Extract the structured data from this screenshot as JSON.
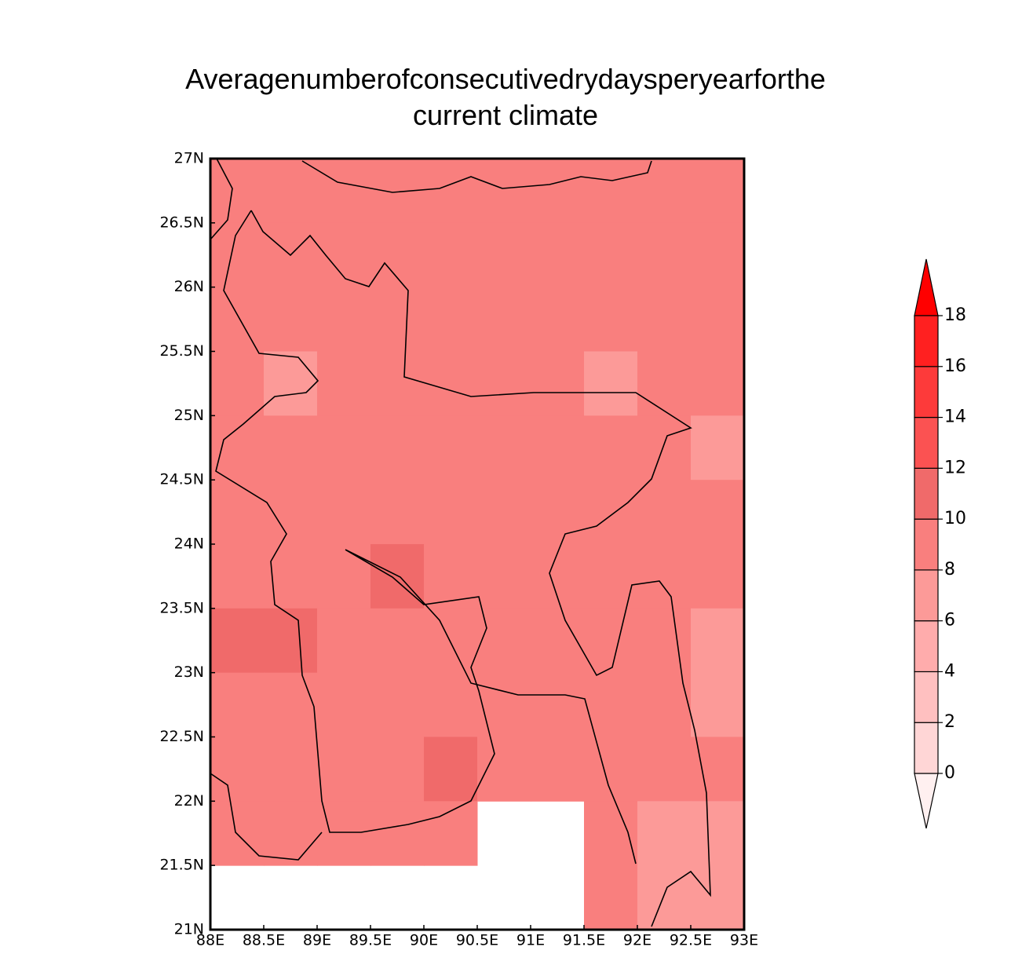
{
  "chart_data": {
    "type": "gridmap",
    "title": "Averagenumberofconsecutivedrydaysperyearforthe current climate",
    "xlim": [
      88,
      93
    ],
    "ylim": [
      21,
      27
    ],
    "xticks": [
      {
        "value": 88,
        "label": "88E"
      },
      {
        "value": 88.5,
        "label": "88.5E"
      },
      {
        "value": 89,
        "label": "89E"
      },
      {
        "value": 89.5,
        "label": "89.5E"
      },
      {
        "value": 90,
        "label": "90E"
      },
      {
        "value": 90.5,
        "label": "90.5E"
      },
      {
        "value": 91,
        "label": "91E"
      },
      {
        "value": 91.5,
        "label": "91.5E"
      },
      {
        "value": 92,
        "label": "92E"
      },
      {
        "value": 92.5,
        "label": "92.5E"
      },
      {
        "value": 93,
        "label": "93E"
      }
    ],
    "yticks": [
      {
        "value": 21,
        "label": "21N"
      },
      {
        "value": 21.5,
        "label": "21.5N"
      },
      {
        "value": 22,
        "label": "22N"
      },
      {
        "value": 22.5,
        "label": "22.5N"
      },
      {
        "value": 23,
        "label": "23N"
      },
      {
        "value": 23.5,
        "label": "23.5N"
      },
      {
        "value": 24,
        "label": "24N"
      },
      {
        "value": 24.5,
        "label": "24.5N"
      },
      {
        "value": 25,
        "label": "25N"
      },
      {
        "value": 25.5,
        "label": "25.5N"
      },
      {
        "value": 26,
        "label": "26N"
      },
      {
        "value": 26.5,
        "label": "26.5N"
      },
      {
        "value": 27,
        "label": "27N"
      }
    ],
    "values": [
      [
        9,
        9,
        9,
        9,
        9,
        9,
        9,
        9,
        9,
        9
      ],
      [
        9,
        9,
        9,
        9,
        9,
        9,
        9,
        9,
        9,
        9
      ],
      [
        9,
        9,
        9,
        9,
        9,
        9,
        9,
        9,
        9,
        9
      ],
      [
        9,
        7,
        9,
        9,
        9,
        9,
        9,
        7,
        9,
        9
      ],
      [
        9,
        9,
        9,
        9,
        9,
        9,
        9,
        9,
        9,
        7
      ],
      [
        9,
        9,
        9,
        9,
        9,
        9,
        9,
        9,
        9,
        9
      ],
      [
        9,
        9,
        9,
        11,
        9,
        9,
        9,
        9,
        9,
        9
      ],
      [
        11,
        11,
        9,
        9,
        9,
        9,
        9,
        9,
        9,
        7
      ],
      [
        9,
        9,
        9,
        9,
        9,
        9,
        9,
        9,
        9,
        7
      ],
      [
        9,
        9,
        9,
        9,
        11,
        9,
        9,
        9,
        9,
        9
      ],
      [
        9,
        9,
        9,
        9,
        9,
        null,
        null,
        9,
        7,
        7
      ],
      [
        null,
        null,
        null,
        null,
        null,
        null,
        null,
        9,
        7,
        7
      ]
    ],
    "colorbar": {
      "levels": [
        0,
        2,
        4,
        6,
        8,
        10,
        12,
        14,
        16,
        18
      ],
      "colors": [
        "#fff0f0",
        "#ffd6d6",
        "#ffc0c0",
        "#ffacac",
        "#fc9a98",
        "#f97f7e",
        "#f06a6a",
        "#fb5252",
        "#fd3a3a",
        "#ff2020",
        "#ff0000"
      ]
    }
  }
}
